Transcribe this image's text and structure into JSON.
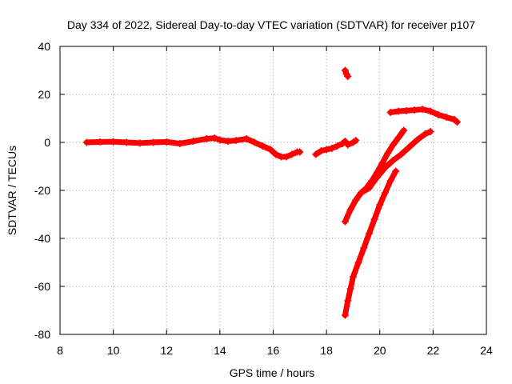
{
  "chart_data": {
    "type": "scatter",
    "title": "Day 334 of 2022, Sidereal Day-to-day VTEC variation (SDTVAR) for receiver p107",
    "xlabel": "GPS time / hours",
    "ylabel": "SDTVAR / TECUs",
    "xlim": [
      8,
      24
    ],
    "ylim": [
      -80,
      40
    ],
    "xticks": [
      8,
      10,
      12,
      14,
      16,
      18,
      20,
      22,
      24
    ],
    "yticks": [
      -80,
      -60,
      -40,
      -20,
      0,
      20,
      40
    ],
    "grid": true,
    "marker": "+",
    "color": "#ff0000",
    "series": [
      {
        "name": "track-main",
        "x": [
          9.0,
          9.5,
          10.0,
          10.5,
          11.0,
          11.5,
          12.0,
          12.5,
          13.0,
          13.5,
          13.8,
          14.0,
          14.3,
          14.6,
          15.0,
          15.3,
          15.6,
          15.9,
          16.1,
          16.3,
          16.5,
          16.7,
          16.9,
          17.0
        ],
        "y": [
          0.0,
          0.2,
          0.3,
          0.0,
          -0.3,
          0.0,
          0.2,
          -0.5,
          0.5,
          1.5,
          1.8,
          1.0,
          0.5,
          0.8,
          1.5,
          0.0,
          -1.5,
          -3.0,
          -5.0,
          -6.0,
          -6.0,
          -5.0,
          -4.0,
          -4.0
        ]
      },
      {
        "name": "track-mid",
        "x": [
          17.6,
          17.8,
          18.0,
          18.2,
          18.4,
          18.6,
          18.7
        ],
        "y": [
          -5.0,
          -3.5,
          -3.0,
          -2.5,
          -1.5,
          -0.5,
          0.5
        ]
      },
      {
        "name": "track-short",
        "x": [
          18.8,
          19.0,
          19.1
        ],
        "y": [
          -1.0,
          0.0,
          0.8
        ]
      },
      {
        "name": "track-high",
        "x": [
          18.7,
          18.75,
          18.8
        ],
        "y": [
          30.0,
          28.5,
          27.5
        ]
      },
      {
        "name": "track-rise-1",
        "x": [
          18.7,
          18.9,
          19.1,
          19.3,
          19.5,
          19.7,
          19.9,
          20.1,
          20.3,
          20.5,
          20.7,
          20.9
        ],
        "y": [
          -33.0,
          -28.0,
          -24.0,
          -21.0,
          -19.0,
          -16.0,
          -12.5,
          -8.5,
          -4.5,
          -1.0,
          2.0,
          5.0
        ]
      },
      {
        "name": "track-rise-2",
        "x": [
          19.3,
          19.6,
          19.9,
          20.2,
          20.5,
          20.8,
          21.1,
          21.4,
          21.7,
          21.9
        ],
        "y": [
          -21.0,
          -19.0,
          -14.5,
          -10.5,
          -7.5,
          -5.0,
          -2.0,
          1.0,
          3.5,
          4.5
        ]
      },
      {
        "name": "track-steep",
        "x": [
          18.7,
          18.8,
          18.9,
          19.0,
          19.2,
          19.4,
          19.6,
          19.8,
          20.0,
          20.2,
          20.4,
          20.6
        ],
        "y": [
          -72.0,
          -66.0,
          -61.0,
          -56.0,
          -50.0,
          -44.0,
          -38.0,
          -32.0,
          -26.0,
          -21.0,
          -16.0,
          -12.0
        ]
      },
      {
        "name": "track-upper",
        "x": [
          20.4,
          20.7,
          21.0,
          21.3,
          21.6,
          21.9,
          22.2,
          22.5,
          22.8,
          22.9
        ],
        "y": [
          12.5,
          13.0,
          13.2,
          13.5,
          13.8,
          13.0,
          11.5,
          10.5,
          9.5,
          8.5
        ]
      }
    ]
  }
}
